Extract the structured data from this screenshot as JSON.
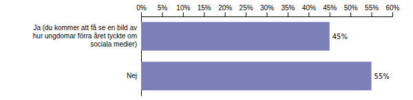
{
  "chart_data": {
    "type": "bar",
    "orientation": "horizontal",
    "categories": [
      "Ja (du kommer att få se en bild av\nhur ungdomar förra året tyckte om\nsociala medier)",
      "Nej"
    ],
    "values": [
      45,
      55
    ],
    "value_labels": [
      "45%",
      "55%"
    ],
    "data_labels": true,
    "color": "#7b7fba",
    "xlim": [
      0,
      60
    ],
    "xticks": [
      {
        "value": 0,
        "label": "0%"
      },
      {
        "value": 5,
        "label": "5%"
      },
      {
        "value": 10,
        "label": "10%"
      },
      {
        "value": 15,
        "label": "15%"
      },
      {
        "value": 20,
        "label": "20%"
      },
      {
        "value": 25,
        "label": "25%"
      },
      {
        "value": 30,
        "label": "30%"
      },
      {
        "value": 35,
        "label": "35%"
      },
      {
        "value": 40,
        "label": "40%"
      },
      {
        "value": 45,
        "label": "45%"
      },
      {
        "value": 50,
        "label": "50%"
      },
      {
        "value": 55,
        "label": "55%"
      },
      {
        "value": 60,
        "label": "60%"
      }
    ],
    "grid": false
  }
}
